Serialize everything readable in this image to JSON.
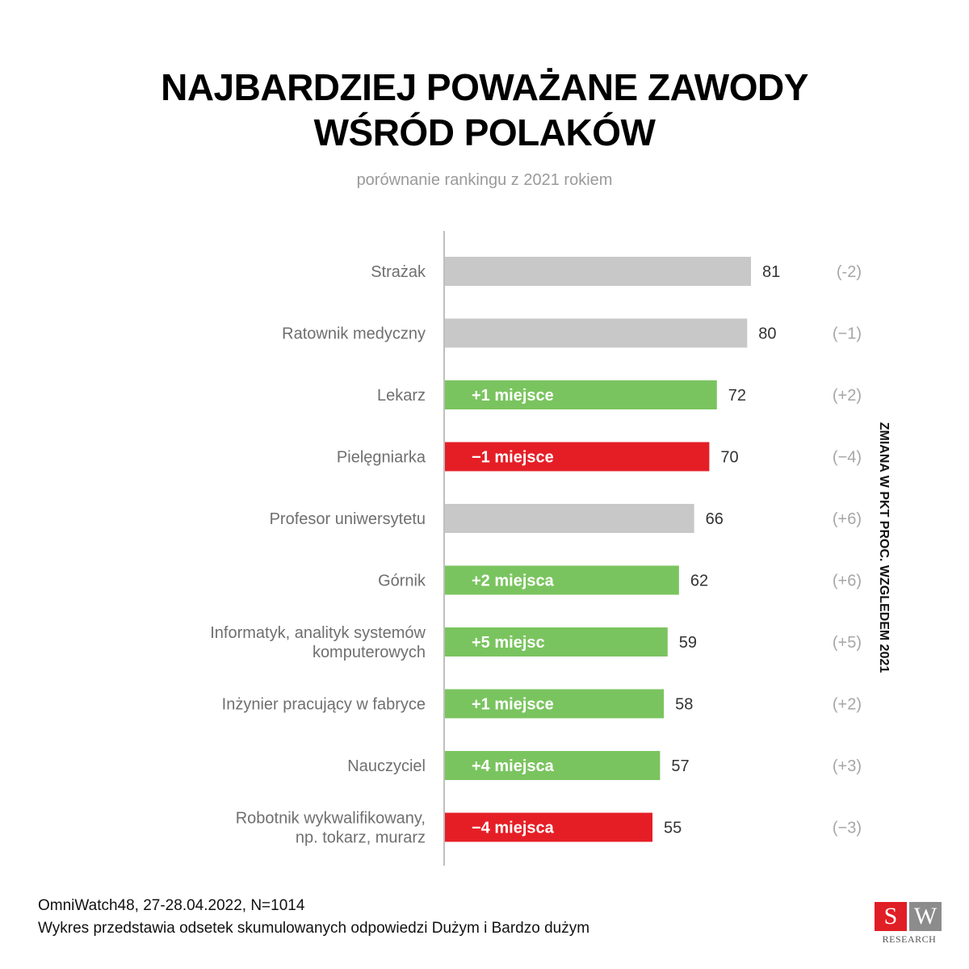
{
  "header": {
    "title_line1": "NAJBARDZIEJ POWAŻANE ZAWODY",
    "title_line2": "WŚRÓD POLAKÓW",
    "subtitle": "porównanie rankingu z 2021 rokiem"
  },
  "side_label": "ZMIANA W PKT PROC. WZGLEDEM 2021",
  "footer": {
    "line1": "OmniWatch48, 27-28.04.2022, N=1014",
    "line2": "Wykres przedstawia odsetek skumulowanych odpowiedzi Dużym i Bardzo dużym"
  },
  "logo": {
    "s": "S",
    "w": "W",
    "text": "RESEARCH"
  },
  "colors": {
    "gray": "#c8c8c8",
    "green": "#7ac45f",
    "red": "#e51e26",
    "axis": "#bfbfbf"
  },
  "chart_data": {
    "type": "bar",
    "orientation": "horizontal",
    "categories": [
      [
        "Strażak"
      ],
      [
        "Ratownik medyczny"
      ],
      [
        "Lekarz"
      ],
      [
        "Pielęgniarka"
      ],
      [
        "Profesor uniwersytetu"
      ],
      [
        "Górnik"
      ],
      [
        "Informatyk, analityk systemów",
        "komputerowych"
      ],
      [
        "Inżynier pracujący w fabryce"
      ],
      [
        "Nauczyciel"
      ],
      [
        "Robotnik wykwalifikowany,",
        "np. tokarz, murarz"
      ]
    ],
    "values": [
      81,
      80,
      72,
      70,
      66,
      62,
      59,
      58,
      57,
      55
    ],
    "rank_change": [
      "",
      "",
      "+1 miejsce",
      "−1 miejsce",
      "",
      "+2 miejsca",
      "+5 miejsc",
      "+1 miejsce",
      "+4 miejsca",
      "−4 miejsca"
    ],
    "bar_color": [
      "gray",
      "gray",
      "green",
      "red",
      "gray",
      "green",
      "green",
      "green",
      "green",
      "red"
    ],
    "point_change": [
      "(-2)",
      "(−1)",
      "(+2)",
      "(−4)",
      "(+6)",
      "(+6)",
      "(+5)",
      "(+2)",
      "(+3)",
      "(−3)"
    ],
    "xlim": [
      0,
      81
    ]
  }
}
